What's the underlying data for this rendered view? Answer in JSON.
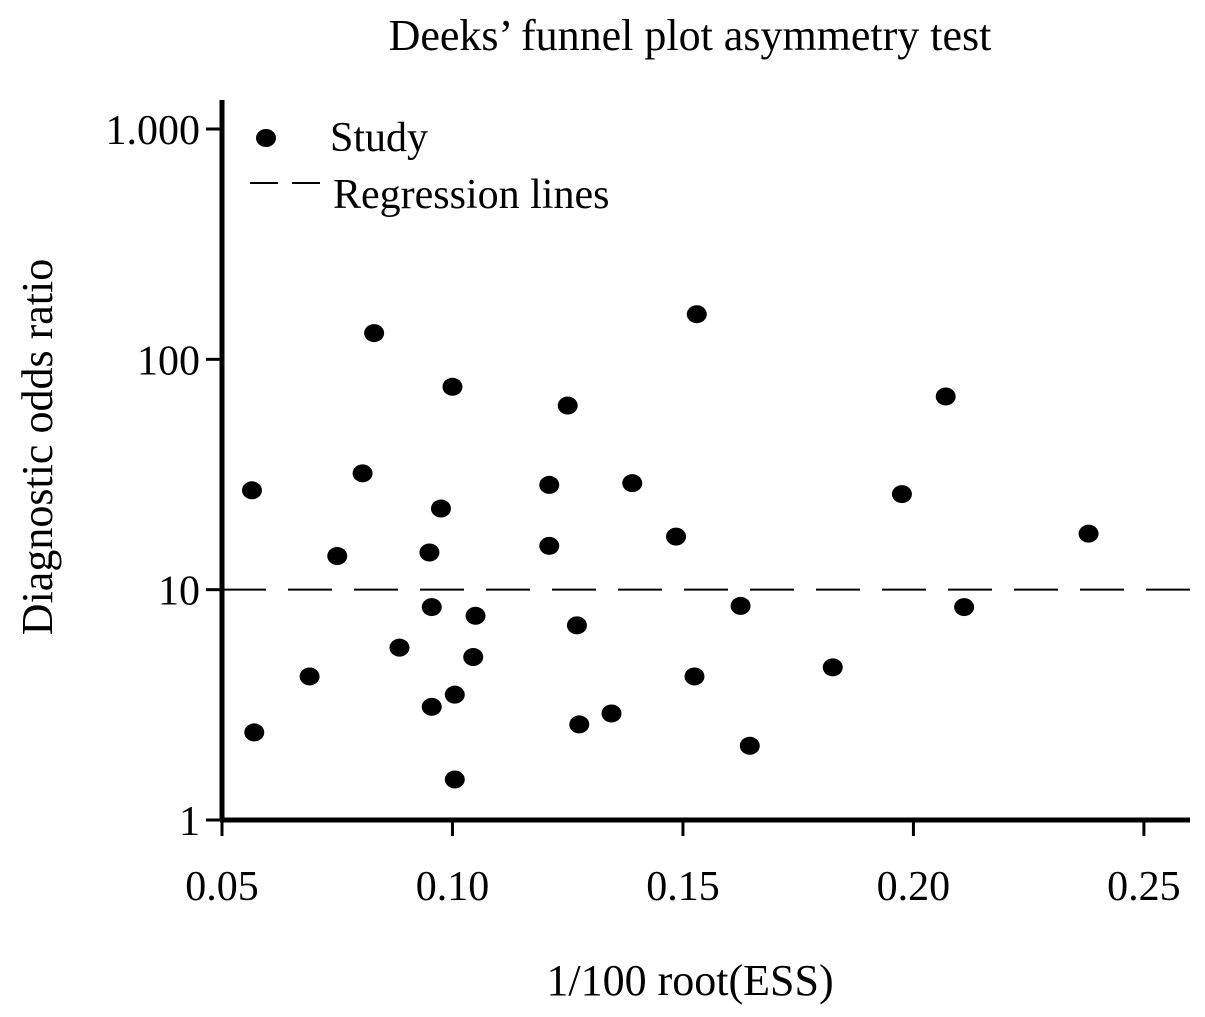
{
  "chart_data": {
    "type": "scatter",
    "title": "Deeks’ funnel plot asymmetry test",
    "xlabel": "1/100 root(ESS)",
    "ylabel": "Diagnostic odds ratio",
    "xlim": [
      0.05,
      0.26
    ],
    "ylim": [
      1,
      1000
    ],
    "y_scale": "log",
    "x_ticks": [
      0.05,
      0.1,
      0.15,
      0.2,
      0.25
    ],
    "x_tick_labels": [
      "0.05",
      "0.10",
      "0.15",
      "0.20",
      "0.25"
    ],
    "y_ticks": [
      1,
      10,
      100,
      1000
    ],
    "y_tick_labels": [
      "1",
      "10",
      "100",
      "1.000"
    ],
    "legend": {
      "position": "top-left",
      "entries": [
        {
          "label": "Study",
          "marker": "dot"
        },
        {
          "label": "Regression lines",
          "marker": "dashed-line"
        }
      ]
    },
    "series": [
      {
        "name": "Study",
        "points": [
          {
            "x": 0.057,
            "y": 2.4
          },
          {
            "x": 0.0565,
            "y": 27
          },
          {
            "x": 0.069,
            "y": 4.2
          },
          {
            "x": 0.075,
            "y": 14
          },
          {
            "x": 0.0805,
            "y": 32
          },
          {
            "x": 0.083,
            "y": 130
          },
          {
            "x": 0.0885,
            "y": 5.6
          },
          {
            "x": 0.095,
            "y": 14.5
          },
          {
            "x": 0.0955,
            "y": 8.4
          },
          {
            "x": 0.0955,
            "y": 3.1
          },
          {
            "x": 0.0975,
            "y": 22.5
          },
          {
            "x": 0.1,
            "y": 76
          },
          {
            "x": 0.1005,
            "y": 3.5
          },
          {
            "x": 0.1005,
            "y": 1.5
          },
          {
            "x": 0.1045,
            "y": 5.1
          },
          {
            "x": 0.105,
            "y": 7.7
          },
          {
            "x": 0.121,
            "y": 28.5
          },
          {
            "x": 0.121,
            "y": 15.5
          },
          {
            "x": 0.125,
            "y": 63
          },
          {
            "x": 0.127,
            "y": 7
          },
          {
            "x": 0.1275,
            "y": 2.6
          },
          {
            "x": 0.1345,
            "y": 2.9
          },
          {
            "x": 0.139,
            "y": 29
          },
          {
            "x": 0.1485,
            "y": 17
          },
          {
            "x": 0.1525,
            "y": 4.2
          },
          {
            "x": 0.153,
            "y": 157
          },
          {
            "x": 0.1625,
            "y": 8.5
          },
          {
            "x": 0.1645,
            "y": 2.1
          },
          {
            "x": 0.1825,
            "y": 4.6
          },
          {
            "x": 0.1975,
            "y": 26
          },
          {
            "x": 0.207,
            "y": 69
          },
          {
            "x": 0.211,
            "y": 8.4
          },
          {
            "x": 0.238,
            "y": 17.5
          }
        ]
      },
      {
        "name": "Regression lines",
        "style": "dashed",
        "points": [
          {
            "x": 0.05,
            "y": 10
          },
          {
            "x": 0.26,
            "y": 10
          }
        ]
      }
    ]
  }
}
